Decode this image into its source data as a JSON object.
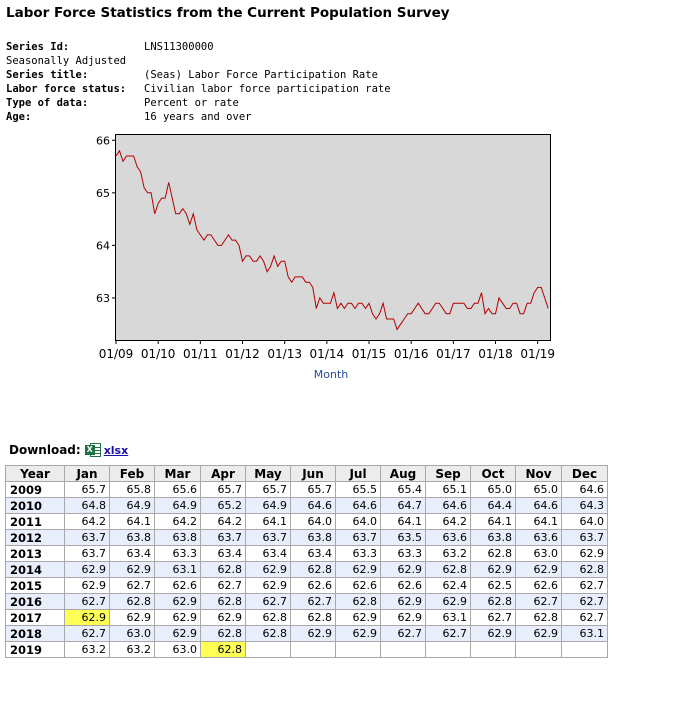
{
  "page": {
    "title": "Labor Force Statistics from the Current Population Survey"
  },
  "series": {
    "rows": [
      {
        "label": "Series Id:",
        "value": "LNS11300000"
      },
      {
        "label": "Seasonally Adjusted",
        "value": ""
      },
      {
        "label": "Series title:",
        "value": "(Seas) Labor Force Participation Rate"
      },
      {
        "label": "Labor force status:",
        "value": "Civilian labor force participation rate"
      },
      {
        "label": "Type of data:",
        "value": "Percent or rate"
      },
      {
        "label": "Age:",
        "value": "16 years and over"
      }
    ]
  },
  "chart_data": {
    "type": "line",
    "xlabel": "Month",
    "ylabel": "",
    "ylim": [
      62.2,
      66.1
    ],
    "y_ticks": [
      63,
      64,
      65,
      66
    ],
    "x_ticks": [
      "01/09",
      "01/10",
      "01/11",
      "01/12",
      "01/13",
      "01/14",
      "01/15",
      "01/16",
      "01/17",
      "01/18",
      "01/19"
    ],
    "grid": false,
    "background": "#d8d8d8",
    "line_color": "#b20000",
    "x_start": "2009-01",
    "series": [
      {
        "values": [
          65.7,
          65.8,
          65.6,
          65.7,
          65.7,
          65.7,
          65.5,
          65.4,
          65.1,
          65.0,
          65.0,
          64.6,
          64.8,
          64.9,
          64.9,
          65.2,
          64.9,
          64.6,
          64.6,
          64.7,
          64.6,
          64.4,
          64.6,
          64.3,
          64.2,
          64.1,
          64.2,
          64.2,
          64.1,
          64.0,
          64.0,
          64.1,
          64.2,
          64.1,
          64.1,
          64.0,
          63.7,
          63.8,
          63.8,
          63.7,
          63.7,
          63.8,
          63.7,
          63.5,
          63.6,
          63.8,
          63.6,
          63.7,
          63.7,
          63.4,
          63.3,
          63.4,
          63.4,
          63.4,
          63.3,
          63.3,
          63.2,
          62.8,
          63.0,
          62.9,
          62.9,
          62.9,
          63.1,
          62.8,
          62.9,
          62.8,
          62.9,
          62.9,
          62.8,
          62.9,
          62.9,
          62.8,
          62.9,
          62.7,
          62.6,
          62.7,
          62.9,
          62.6,
          62.6,
          62.6,
          62.4,
          62.5,
          62.6,
          62.7,
          62.7,
          62.8,
          62.9,
          62.8,
          62.7,
          62.7,
          62.8,
          62.9,
          62.9,
          62.8,
          62.7,
          62.7,
          62.9,
          62.9,
          62.9,
          62.9,
          62.8,
          62.8,
          62.9,
          62.9,
          63.1,
          62.7,
          62.8,
          62.7,
          62.7,
          63.0,
          62.9,
          62.8,
          62.8,
          62.9,
          62.9,
          62.7,
          62.7,
          62.9,
          62.9,
          63.1,
          63.2,
          63.2,
          63.0,
          62.8
        ]
      }
    ]
  },
  "download": {
    "label": "Download:",
    "icon": "excel-icon",
    "icon_letter": "X",
    "link": "xlsx"
  },
  "table": {
    "headers": [
      "Year",
      "Jan",
      "Feb",
      "Mar",
      "Apr",
      "May",
      "Jun",
      "Jul",
      "Aug",
      "Sep",
      "Oct",
      "Nov",
      "Dec"
    ],
    "highlight_color": "#ffff55",
    "highlighted": [
      [
        "2017",
        0
      ],
      [
        "2019",
        3
      ]
    ],
    "rows": [
      {
        "year": "2009",
        "values": [
          "65.7",
          "65.8",
          "65.6",
          "65.7",
          "65.7",
          "65.7",
          "65.5",
          "65.4",
          "65.1",
          "65.0",
          "65.0",
          "64.6"
        ]
      },
      {
        "year": "2010",
        "values": [
          "64.8",
          "64.9",
          "64.9",
          "65.2",
          "64.9",
          "64.6",
          "64.6",
          "64.7",
          "64.6",
          "64.4",
          "64.6",
          "64.3"
        ]
      },
      {
        "year": "2011",
        "values": [
          "64.2",
          "64.1",
          "64.2",
          "64.2",
          "64.1",
          "64.0",
          "64.0",
          "64.1",
          "64.2",
          "64.1",
          "64.1",
          "64.0"
        ]
      },
      {
        "year": "2012",
        "values": [
          "63.7",
          "63.8",
          "63.8",
          "63.7",
          "63.7",
          "63.8",
          "63.7",
          "63.5",
          "63.6",
          "63.8",
          "63.6",
          "63.7"
        ]
      },
      {
        "year": "2013",
        "values": [
          "63.7",
          "63.4",
          "63.3",
          "63.4",
          "63.4",
          "63.4",
          "63.3",
          "63.3",
          "63.2",
          "62.8",
          "63.0",
          "62.9"
        ]
      },
      {
        "year": "2014",
        "values": [
          "62.9",
          "62.9",
          "63.1",
          "62.8",
          "62.9",
          "62.8",
          "62.9",
          "62.9",
          "62.8",
          "62.9",
          "62.9",
          "62.8"
        ]
      },
      {
        "year": "2015",
        "values": [
          "62.9",
          "62.7",
          "62.6",
          "62.7",
          "62.9",
          "62.6",
          "62.6",
          "62.6",
          "62.4",
          "62.5",
          "62.6",
          "62.7"
        ]
      },
      {
        "year": "2016",
        "values": [
          "62.7",
          "62.8",
          "62.9",
          "62.8",
          "62.7",
          "62.7",
          "62.8",
          "62.9",
          "62.9",
          "62.8",
          "62.7",
          "62.7"
        ]
      },
      {
        "year": "2017",
        "values": [
          "62.9",
          "62.9",
          "62.9",
          "62.9",
          "62.8",
          "62.8",
          "62.9",
          "62.9",
          "63.1",
          "62.7",
          "62.8",
          "62.7"
        ]
      },
      {
        "year": "2018",
        "values": [
          "62.7",
          "63.0",
          "62.9",
          "62.8",
          "62.8",
          "62.9",
          "62.9",
          "62.7",
          "62.7",
          "62.9",
          "62.9",
          "63.1"
        ]
      },
      {
        "year": "2019",
        "values": [
          "63.2",
          "63.2",
          "63.0",
          "62.8",
          "",
          "",
          "",
          "",
          "",
          "",
          "",
          ""
        ]
      }
    ]
  }
}
